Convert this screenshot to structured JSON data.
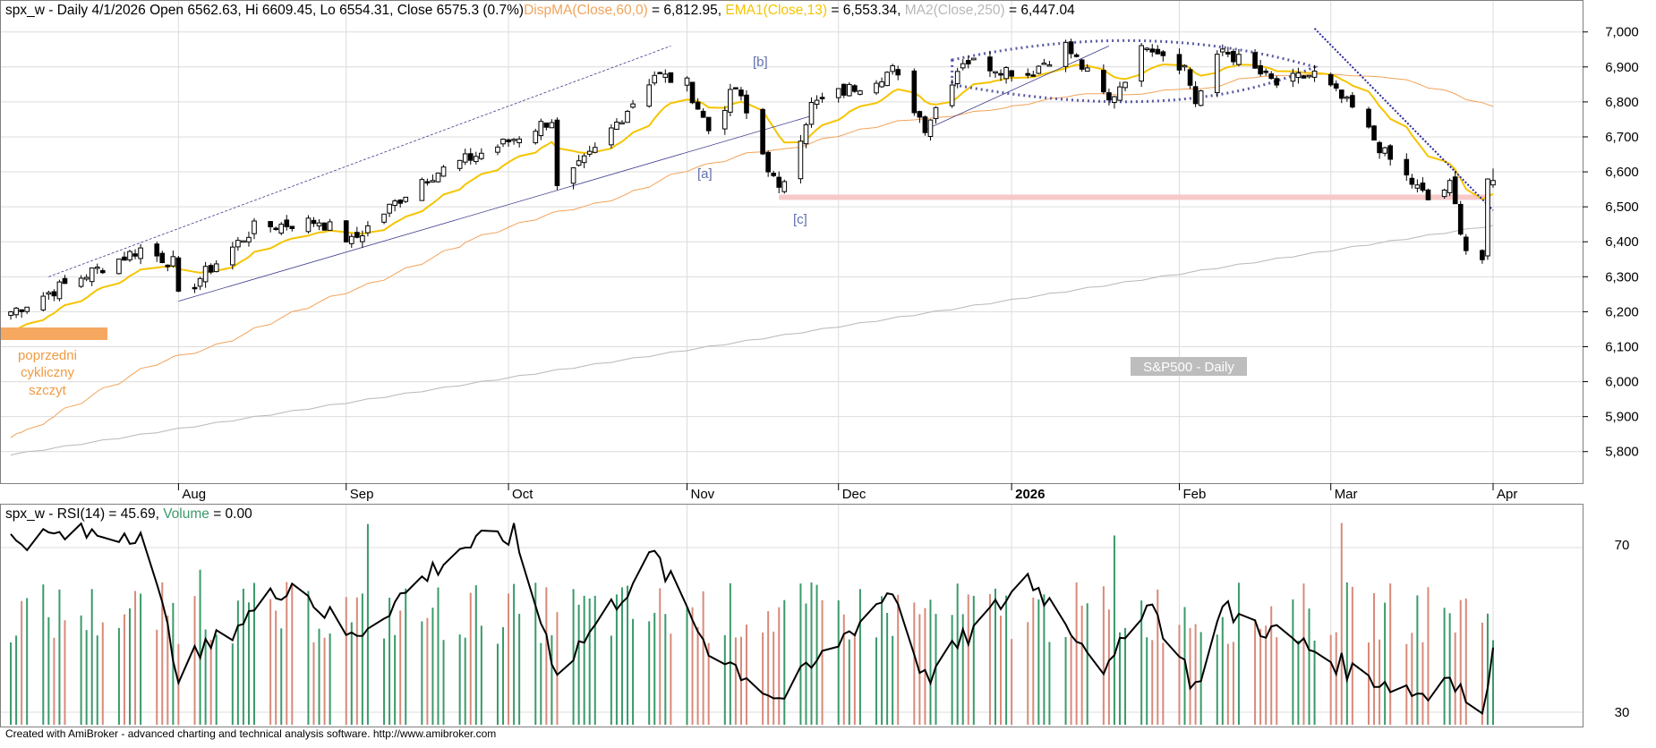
{
  "colors": {
    "candle_up": "#ffffff",
    "candle_down": "#000000",
    "ema13": "#f5c400",
    "dispma": "#f2a35a",
    "ma250": "#b8b8b8",
    "trend_blue": "#3c3c8c",
    "ellipse_dots": "#5a5aa8",
    "support_band": "#f7c9c9",
    "prev_peak_box": "#f6a860",
    "rsi_line": "#000000",
    "vol_up": "#3a9a6a",
    "vol_down": "#d88a7a",
    "grid": "#dcdcdc",
    "label_gray": "#b0b0b0"
  },
  "price_panel": {
    "header": {
      "main": "spx_w - Daily 4/1/2026 Open 6562.63, Hi 6609.45, Lo 6554.31, Close 6575.3 (0.7%)",
      "dispma_label": "DispMA(Close,60,0)",
      "dispma_value": " = 6,812.95, ",
      "ema_label": "EMA1(Close,13)",
      "ema_value": " = 6,553.34, ",
      "ma_label": "MA2(Close,250)",
      "ma_value": " = 6,447.04"
    },
    "watermark": "S&P500 - Daily",
    "wave_labels": [
      "[b]",
      "[a]",
      "[c]"
    ],
    "annotation": [
      "poprzedni",
      "cykliczny",
      "szczyt"
    ],
    "x_labels": [
      "Aug",
      "Sep",
      "Oct",
      "Nov",
      "Dec",
      "2026",
      "Feb",
      "Mar",
      "Apr"
    ]
  },
  "indicator_panel": {
    "header_main": "spx_w - RSI(14) = 45.69, ",
    "volume_label": "Volume",
    "volume_value": " = 0.00",
    "y_labels": [
      "70",
      "30"
    ]
  },
  "footer": "Created with AmiBroker - advanced charting and technical analysis software. http://www.amibroker.com",
  "chart_data": {
    "type": "candlestick",
    "title": "spx_w - Daily",
    "y_axis": {
      "ticks": [
        5800,
        5900,
        6000,
        6100,
        6200,
        6300,
        6400,
        6500,
        6600,
        6700,
        6800,
        6900,
        7000
      ],
      "tick_labels": [
        "5,800",
        "5,900",
        "6,000",
        "6,100",
        "6,200",
        "6,300",
        "6,400",
        "6,500",
        "6,600",
        "6,700",
        "6,800",
        "6,900",
        "7,000"
      ],
      "range": [
        5720,
        7030
      ]
    },
    "x_axis": {
      "months": [
        "Aug",
        "Sep",
        "Oct",
        "Nov",
        "Dec",
        "2026",
        "Feb",
        "Mar",
        "Apr"
      ]
    },
    "close_path": [
      {
        "d": "2025-07-01",
        "v": 6200
      },
      {
        "d": "2025-07-10",
        "v": 6270
      },
      {
        "d": "2025-07-25",
        "v": 6380
      },
      {
        "d": "2025-07-31",
        "v": 6340
      },
      {
        "d": "2025-08-01",
        "v": 6240
      },
      {
        "d": "2025-08-15",
        "v": 6440
      },
      {
        "d": "2025-08-27",
        "v": 6460
      },
      {
        "d": "2025-09-02",
        "v": 6400
      },
      {
        "d": "2025-09-15",
        "v": 6580
      },
      {
        "d": "2025-09-30",
        "v": 6680
      },
      {
        "d": "2025-10-09",
        "v": 6750
      },
      {
        "d": "2025-10-10",
        "v": 6550
      },
      {
        "d": "2025-10-17",
        "v": 6660
      },
      {
        "d": "2025-10-28",
        "v": 6880
      },
      {
        "d": "2025-11-03",
        "v": 6850
      },
      {
        "d": "2025-11-07",
        "v": 6720
      },
      {
        "d": "2025-11-12",
        "v": 6840
      },
      {
        "d": "2025-11-20",
        "v": 6540
      },
      {
        "d": "2025-11-26",
        "v": 6790
      },
      {
        "d": "2025-12-11",
        "v": 6890
      },
      {
        "d": "2025-12-17",
        "v": 6730
      },
      {
        "d": "2025-12-24",
        "v": 6920
      },
      {
        "d": "2026-01-05",
        "v": 6880
      },
      {
        "d": "2026-01-12",
        "v": 6960
      },
      {
        "d": "2026-01-20",
        "v": 6800
      },
      {
        "d": "2026-01-27",
        "v": 6970
      },
      {
        "d": "2026-02-03",
        "v": 6900
      },
      {
        "d": "2026-02-05",
        "v": 6800
      },
      {
        "d": "2026-02-10",
        "v": 6950
      },
      {
        "d": "2026-02-20",
        "v": 6850
      },
      {
        "d": "2026-02-27",
        "v": 6880
      },
      {
        "d": "2026-03-06",
        "v": 6780
      },
      {
        "d": "2026-03-12",
        "v": 6650
      },
      {
        "d": "2026-03-20",
        "v": 6520
      },
      {
        "d": "2026-03-24",
        "v": 6560
      },
      {
        "d": "2026-03-27",
        "v": 6380
      },
      {
        "d": "2026-03-30",
        "v": 6350
      },
      {
        "d": "2026-03-31",
        "v": 6560
      },
      {
        "d": "2026-04-01",
        "v": 6575.3
      }
    ],
    "last_bar": {
      "date": "4/1/2026",
      "open": 6562.63,
      "high": 6609.45,
      "low": 6554.31,
      "close": 6575.3,
      "change_pct": 0.7
    },
    "series": [
      {
        "name": "DispMA(Close,60,0)",
        "last": 6812.95
      },
      {
        "name": "EMA1(Close,13)",
        "last": 6553.34
      },
      {
        "name": "MA2(Close,250)",
        "last": 6447.04
      }
    ],
    "rsi": {
      "name": "RSI(14)",
      "last": 45.69,
      "y_ticks": [
        70,
        30
      ],
      "path": [
        {
          "d": "2025-07-01",
          "v": 72
        },
        {
          "d": "2025-07-25",
          "v": 74
        },
        {
          "d": "2025-08-01",
          "v": 40
        },
        {
          "d": "2025-08-22",
          "v": 62
        },
        {
          "d": "2025-09-02",
          "v": 48
        },
        {
          "d": "2025-09-22",
          "v": 70
        },
        {
          "d": "2025-10-02",
          "v": 73
        },
        {
          "d": "2025-10-10",
          "v": 40
        },
        {
          "d": "2025-10-28",
          "v": 68
        },
        {
          "d": "2025-11-07",
          "v": 46
        },
        {
          "d": "2025-11-20",
          "v": 33
        },
        {
          "d": "2025-12-11",
          "v": 60
        },
        {
          "d": "2025-12-17",
          "v": 38
        },
        {
          "d": "2026-01-05",
          "v": 63
        },
        {
          "d": "2026-01-20",
          "v": 40
        },
        {
          "d": "2026-01-27",
          "v": 58
        },
        {
          "d": "2026-02-05",
          "v": 36
        },
        {
          "d": "2026-02-10",
          "v": 55
        },
        {
          "d": "2026-02-27",
          "v": 45
        },
        {
          "d": "2026-03-06",
          "v": 40
        },
        {
          "d": "2026-03-20",
          "v": 34
        },
        {
          "d": "2026-03-24",
          "v": 40
        },
        {
          "d": "2026-03-30",
          "v": 28
        },
        {
          "d": "2026-04-01",
          "v": 45.69
        }
      ]
    },
    "volume": {
      "name": "Volume",
      "last": 0.0
    }
  }
}
